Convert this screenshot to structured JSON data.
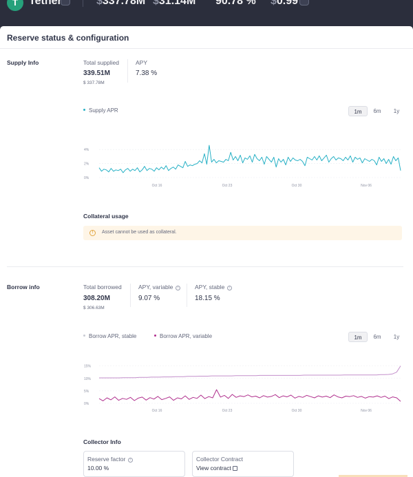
{
  "header": {
    "logo_letter": "T",
    "asset_name": "Tether",
    "stats": [
      {
        "currency": "$",
        "value": "337.78M"
      },
      {
        "currency": "$",
        "value": "31.14M"
      },
      {
        "currency": "",
        "value": "90.78 %"
      },
      {
        "currency": "$",
        "value": "0.99"
      }
    ]
  },
  "panel": {
    "title": "Reserve status & configuration"
  },
  "supply": {
    "section_label": "Supply Info",
    "total_label": "Total supplied",
    "total_value": "339.51M",
    "total_usd": "$ 337.78M",
    "apy_label": "APY",
    "apy_value": "7.38 %",
    "legend": "Supply APR",
    "legend_color": "#26b0c5"
  },
  "borrow": {
    "section_label": "Borrow info",
    "total_label": "Total borrowed",
    "total_value": "308.20M",
    "total_usd": "$ 306.63M",
    "apy_variable_label": "APY, variable",
    "apy_variable_value": "9.07 %",
    "apy_stable_label": "APY, stable",
    "apy_stable_value": "18.15 %",
    "legend_stable": "Borrow APR, stable",
    "legend_stable_color": "#c38fcb",
    "legend_variable": "Borrow APR, variable",
    "legend_variable_color": "#b0308e"
  },
  "range_tabs": [
    "1m",
    "6m",
    "1y"
  ],
  "range_selected": "1m",
  "collateral": {
    "title": "Collateral usage",
    "warning": "Asset cannot be used as collateral."
  },
  "collector": {
    "title": "Collector Info",
    "reserve_factor_label": "Reserve factor",
    "reserve_factor_value": "10.00 %",
    "contract_label": "Collector Contract",
    "contract_link": "View contract"
  },
  "chart_data": [
    {
      "type": "line",
      "series": [
        {
          "name": "Supply APR",
          "color": "#26b0c5",
          "values": [
            1.4,
            0.9,
            1.2,
            1.1,
            0.8,
            1.3,
            0.9,
            1.1,
            1.0,
            1.2,
            0.7,
            1.1,
            1.3,
            0.9,
            1.2,
            1.0,
            1.4,
            0.8,
            1.1,
            1.6,
            1.0,
            1.3,
            1.2,
            0.9,
            1.4,
            1.1,
            1.5,
            1.2,
            1.7,
            1.0,
            1.3,
            1.5,
            1.2,
            1.8,
            1.6,
            1.4,
            2.3,
            1.6,
            1.8,
            1.7,
            1.9,
            2.0,
            2.4,
            2.1,
            3.4,
            1.9,
            4.6,
            2.2,
            2.6,
            2.1,
            2.4,
            2.3,
            2.2,
            2.6,
            2.4,
            3.6,
            2.5,
            3.0,
            2.4,
            3.2,
            2.1,
            2.8,
            2.6,
            3.1,
            2.2,
            3.3,
            2.7,
            2.4,
            2.9,
            1.9,
            3.0,
            2.6,
            2.2,
            2.9,
            1.5,
            2.7,
            2.2,
            2.6,
            1.8,
            2.9,
            2.3,
            2.8,
            2.5,
            2.4,
            2.6,
            2.3,
            1.7,
            2.9,
            2.7,
            2.5,
            3.0,
            2.5,
            3.1,
            2.4,
            2.8,
            3.2,
            2.2,
            2.7,
            3.0,
            2.5,
            2.8,
            2.7,
            2.4,
            2.9,
            2.5,
            3.1,
            2.2,
            2.9,
            2.6,
            2.8,
            2.1,
            2.7,
            2.5,
            2.3,
            2.6,
            2.4,
            1.8,
            2.9,
            2.3,
            2.7,
            2.0,
            2.6,
            1.9,
            3.0,
            2.4,
            2.8,
            1.0
          ]
        }
      ],
      "x_ticks": [
        "Oct 16",
        "Oct 23",
        "Oct 30",
        "Nov 06"
      ],
      "y_ticks": [
        "4%",
        "2%",
        "0%"
      ],
      "ylim": [
        0,
        5
      ]
    },
    {
      "type": "line",
      "series": [
        {
          "name": "Borrow APR, stable",
          "color": "#c38fcb",
          "values": [
            10.2,
            10.2,
            10.2,
            10.2,
            10.2,
            10.2,
            10.3,
            10.3,
            10.3,
            10.3,
            10.4,
            10.4,
            10.4,
            10.5,
            10.5,
            10.5,
            10.6,
            10.6,
            10.6,
            10.7,
            10.7,
            10.7,
            10.8,
            10.8,
            10.8,
            10.9,
            10.9,
            10.9,
            11.0,
            11.0,
            11.0,
            11.0,
            11.0,
            11.0,
            11.1,
            11.1,
            11.1,
            11.1,
            11.1,
            11.1,
            11.2,
            11.2,
            11.2,
            11.2,
            11.2,
            11.2,
            11.2,
            11.2,
            11.2,
            11.2,
            11.2,
            11.3,
            11.3,
            11.3,
            11.3,
            11.3,
            11.3,
            11.3,
            11.3,
            11.3,
            11.3,
            11.4,
            11.4,
            11.4,
            11.4,
            11.4,
            11.4,
            11.4,
            11.4,
            11.4,
            11.5,
            11.5,
            11.6,
            11.8,
            12.5,
            15.0
          ]
        },
        {
          "name": "Borrow APR, variable",
          "color": "#b0308e",
          "values": [
            1.9,
            1.0,
            2.2,
            1.4,
            2.6,
            1.2,
            2.0,
            1.6,
            2.4,
            1.1,
            2.1,
            2.5,
            1.3,
            2.3,
            1.7,
            2.8,
            1.5,
            2.0,
            2.6,
            1.2,
            2.2,
            1.8,
            3.0,
            1.6,
            2.4,
            2.0,
            3.3,
            1.9,
            2.7,
            2.2,
            5.5,
            2.5,
            3.2,
            2.0,
            3.6,
            2.4,
            3.0,
            2.7,
            3.4,
            2.6,
            2.9,
            2.2,
            3.1,
            2.5,
            2.8,
            3.5,
            2.3,
            3.0,
            2.6,
            3.3,
            2.1,
            2.8,
            2.4,
            3.2,
            2.7,
            2.2,
            3.0,
            2.5,
            2.9,
            2.3,
            3.4,
            2.6,
            2.2,
            2.9,
            2.7,
            3.1,
            2.4,
            2.8,
            2.1,
            2.7,
            2.5,
            3.0,
            2.4,
            2.9,
            1.9,
            2.6,
            2.2,
            0.8
          ]
        }
      ],
      "x_ticks": [
        "Oct 16",
        "Oct 23",
        "Oct 30",
        "Nov 06"
      ],
      "y_ticks": [
        "15%",
        "10%",
        "5%",
        "0%"
      ],
      "ylim": [
        0,
        16
      ]
    }
  ]
}
